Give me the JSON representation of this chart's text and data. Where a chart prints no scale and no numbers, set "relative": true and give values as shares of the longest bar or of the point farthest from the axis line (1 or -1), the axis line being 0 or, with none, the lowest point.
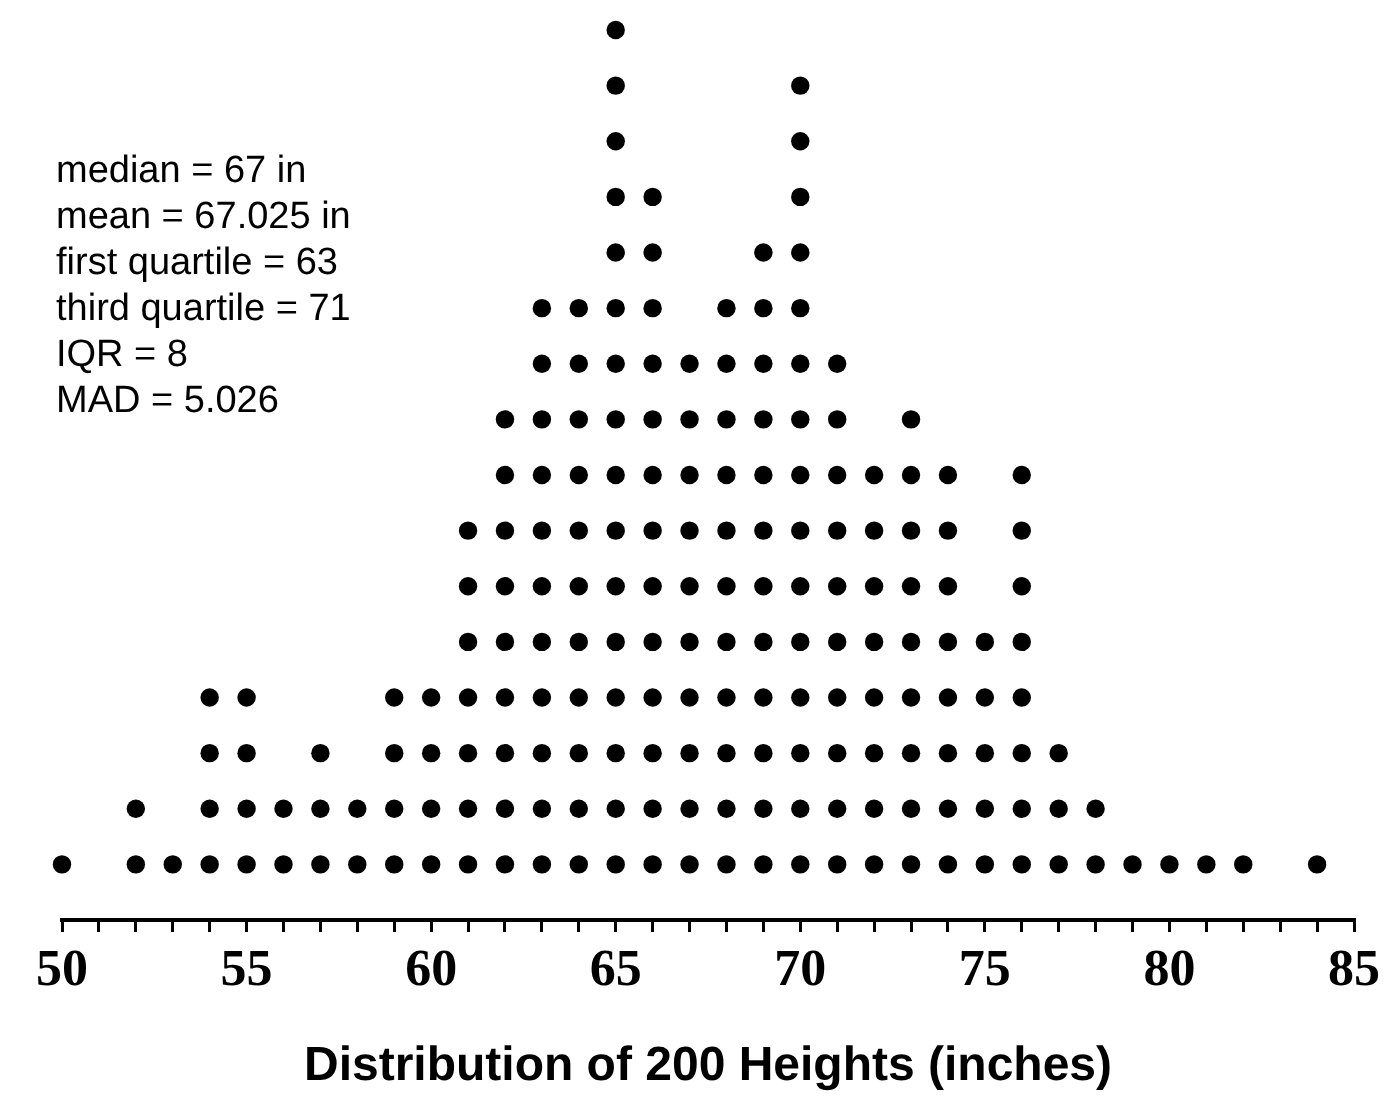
{
  "chart_data": {
    "type": "scatter",
    "relative": true,
    "marker": "circle",
    "grid": false,
    "legend": false,
    "xlabel": "Distribution of 200 Heights (inches)",
    "xlim": [
      50,
      85
    ],
    "xticks": [
      50,
      {
        "value": 51,
        "label": null
      },
      {
        "value": 52,
        "label": null
      },
      {
        "value": 53,
        "label": null
      },
      {
        "value": 54,
        "label": null
      },
      55,
      {
        "value": 56,
        "label": null
      },
      {
        "value": 57,
        "label": null
      },
      {
        "value": 58,
        "label": null
      },
      {
        "value": 59,
        "label": null
      },
      60,
      {
        "value": 61,
        "label": null
      },
      {
        "value": 62,
        "label": null
      },
      {
        "value": 63,
        "label": null
      },
      {
        "value": 64,
        "label": null
      },
      65,
      {
        "value": 66,
        "label": null
      },
      {
        "value": 67,
        "label": null
      },
      {
        "value": 68,
        "label": null
      },
      {
        "value": 69,
        "label": null
      },
      70,
      {
        "value": 71,
        "label": null
      },
      {
        "value": 72,
        "label": null
      },
      {
        "value": 73,
        "label": null
      },
      {
        "value": 74,
        "label": null
      },
      75,
      {
        "value": 76,
        "label": null
      },
      {
        "value": 77,
        "label": null
      },
      {
        "value": 78,
        "label": null
      },
      {
        "value": 79,
        "label": null
      },
      80,
      {
        "value": 81,
        "label": null
      },
      {
        "value": 82,
        "label": null
      },
      {
        "value": 83,
        "label": null
      },
      {
        "value": 84,
        "label": null
      },
      85
    ],
    "annotations": [
      "median = 67 in",
      "mean = 67.025 in",
      "first quartile = 63",
      "third quartile = 71",
      "IQR = 8",
      "MAD = 5.026"
    ],
    "series": [
      {
        "color": "#000000",
        "x": [
          50,
          52,
          52,
          53,
          54,
          54,
          54,
          54,
          55,
          55,
          55,
          55,
          56,
          56,
          57,
          57,
          57,
          58,
          58,
          59,
          59,
          59,
          59,
          60,
          60,
          60,
          60,
          61,
          61,
          61,
          61,
          61,
          61,
          61,
          62,
          62,
          62,
          62,
          62,
          62,
          62,
          62,
          62,
          63,
          63,
          63,
          63,
          63,
          63,
          63,
          63,
          63,
          63,
          63,
          64,
          64,
          64,
          64,
          64,
          64,
          64,
          64,
          64,
          64,
          64,
          65,
          65,
          65,
          65,
          65,
          65,
          65,
          65,
          65,
          65,
          65,
          65,
          65,
          65,
          65,
          65,
          66,
          66,
          66,
          66,
          66,
          66,
          66,
          66,
          66,
          66,
          66,
          66,
          66,
          67,
          67,
          67,
          67,
          67,
          67,
          67,
          67,
          67,
          67,
          68,
          68,
          68,
          68,
          68,
          68,
          68,
          68,
          68,
          68,
          68,
          69,
          69,
          69,
          69,
          69,
          69,
          69,
          69,
          69,
          69,
          69,
          69,
          70,
          70,
          70,
          70,
          70,
          70,
          70,
          70,
          70,
          70,
          70,
          70,
          70,
          70,
          70,
          71,
          71,
          71,
          71,
          71,
          71,
          71,
          71,
          71,
          71,
          72,
          72,
          72,
          72,
          72,
          72,
          72,
          72,
          73,
          73,
          73,
          73,
          73,
          73,
          73,
          73,
          73,
          74,
          74,
          74,
          74,
          74,
          74,
          74,
          74,
          75,
          75,
          75,
          75,
          75,
          76,
          76,
          76,
          76,
          76,
          76,
          76,
          76,
          77,
          77,
          77,
          78,
          78,
          79,
          80,
          81,
          82,
          84
        ],
        "values": [
          0.0625,
          0.0625,
          0.125,
          0.0625,
          0.0625,
          0.125,
          0.1875,
          0.25,
          0.0625,
          0.125,
          0.1875,
          0.25,
          0.0625,
          0.125,
          0.0625,
          0.125,
          0.1875,
          0.0625,
          0.125,
          0.0625,
          0.125,
          0.1875,
          0.25,
          0.0625,
          0.125,
          0.1875,
          0.25,
          0.0625,
          0.125,
          0.1875,
          0.25,
          0.3125,
          0.375,
          0.4375,
          0.0625,
          0.125,
          0.1875,
          0.25,
          0.3125,
          0.375,
          0.4375,
          0.5,
          0.5625,
          0.0625,
          0.125,
          0.1875,
          0.25,
          0.3125,
          0.375,
          0.4375,
          0.5,
          0.5625,
          0.625,
          0.6875,
          0.0625,
          0.125,
          0.1875,
          0.25,
          0.3125,
          0.375,
          0.4375,
          0.5,
          0.5625,
          0.625,
          0.6875,
          0.0625,
          0.125,
          0.1875,
          0.25,
          0.3125,
          0.375,
          0.4375,
          0.5,
          0.5625,
          0.625,
          0.6875,
          0.75,
          0.8125,
          0.875,
          0.9375,
          1,
          0.0625,
          0.125,
          0.1875,
          0.25,
          0.3125,
          0.375,
          0.4375,
          0.5,
          0.5625,
          0.625,
          0.6875,
          0.75,
          0.8125,
          0.0625,
          0.125,
          0.1875,
          0.25,
          0.3125,
          0.375,
          0.4375,
          0.5,
          0.5625,
          0.625,
          0.0625,
          0.125,
          0.1875,
          0.25,
          0.3125,
          0.375,
          0.4375,
          0.5,
          0.5625,
          0.625,
          0.6875,
          0.0625,
          0.125,
          0.1875,
          0.25,
          0.3125,
          0.375,
          0.4375,
          0.5,
          0.5625,
          0.625,
          0.6875,
          0.75,
          0.0625,
          0.125,
          0.1875,
          0.25,
          0.3125,
          0.375,
          0.4375,
          0.5,
          0.5625,
          0.625,
          0.6875,
          0.75,
          0.8125,
          0.875,
          0.9375,
          0.0625,
          0.125,
          0.1875,
          0.25,
          0.3125,
          0.375,
          0.4375,
          0.5,
          0.5625,
          0.625,
          0.0625,
          0.125,
          0.1875,
          0.25,
          0.3125,
          0.375,
          0.4375,
          0.5,
          0.0625,
          0.125,
          0.1875,
          0.25,
          0.3125,
          0.375,
          0.4375,
          0.5,
          0.5625,
          0.0625,
          0.125,
          0.1875,
          0.25,
          0.3125,
          0.375,
          0.4375,
          0.5,
          0.0625,
          0.125,
          0.1875,
          0.25,
          0.3125,
          0.0625,
          0.125,
          0.1875,
          0.25,
          0.3125,
          0.375,
          0.4375,
          0.5,
          0.0625,
          0.125,
          0.1875,
          0.0625,
          0.125,
          0.0625,
          0.0625,
          0.0625,
          0.0625,
          0.0625
        ]
      }
    ]
  }
}
